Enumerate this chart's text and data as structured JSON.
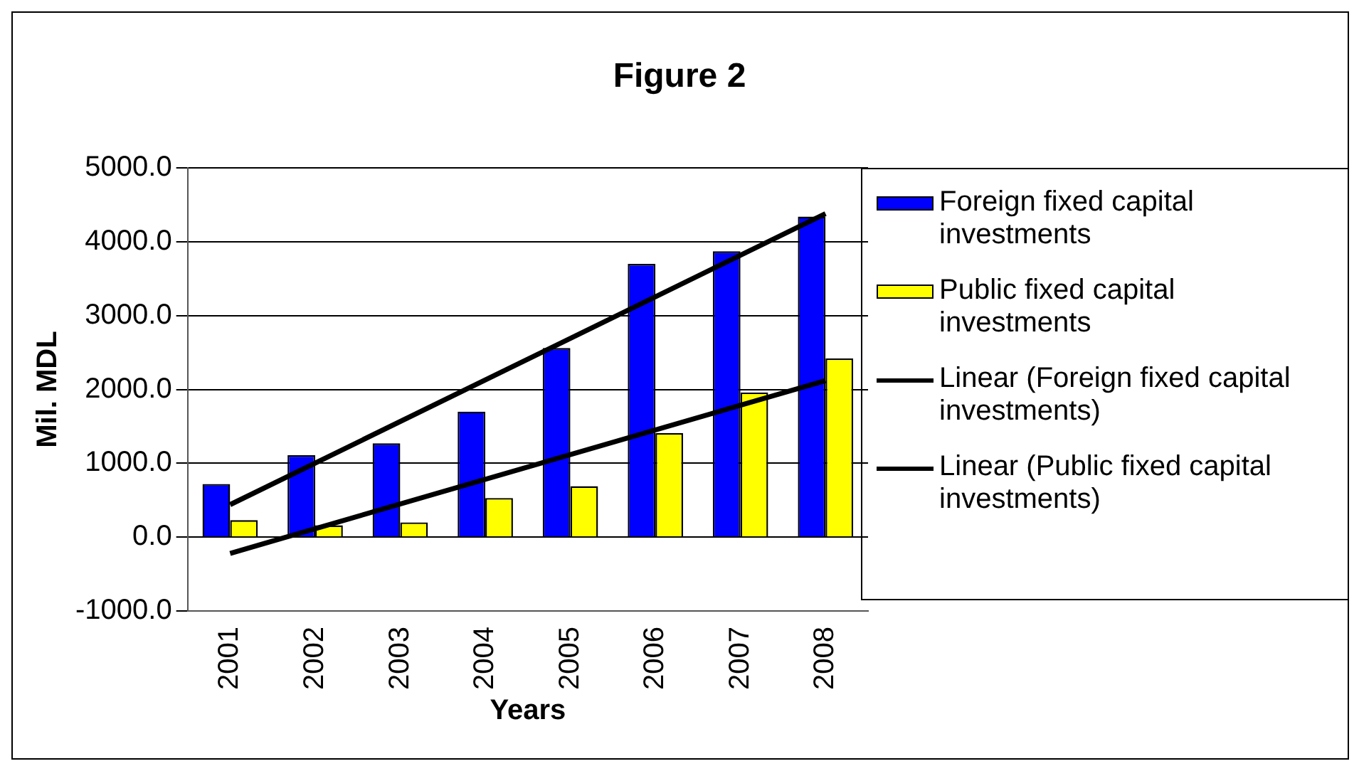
{
  "chart_data": {
    "type": "bar",
    "title": "Figure 2",
    "xlabel": "Years",
    "ylabel": "Mil. MDL",
    "categories": [
      "2001",
      "2002",
      "2003",
      "2004",
      "2005",
      "2006",
      "2007",
      "2008"
    ],
    "series": [
      {
        "name": "Foreign fixed capital investments",
        "color": "#0000ff",
        "values": [
          720,
          1110,
          1270,
          1700,
          2560,
          3700,
          3870,
          4340
        ]
      },
      {
        "name": "Public fixed capital investments",
        "color": "#ffff00",
        "values": [
          230,
          160,
          200,
          530,
          690,
          1410,
          1960,
          2420
        ]
      },
      {
        "name": "Linear (Foreign fixed capital investments)",
        "type": "line",
        "color": "#000000",
        "values": [
          440,
          null,
          null,
          null,
          null,
          null,
          null,
          4380
        ]
      },
      {
        "name": "Linear (Public fixed capital investments)",
        "type": "line",
        "color": "#000000",
        "values": [
          -220,
          null,
          null,
          null,
          null,
          null,
          null,
          2120
        ]
      }
    ],
    "ylim": [
      -1000,
      5000
    ],
    "yticks": [
      {
        "value": -1000,
        "label": "-1000.0"
      },
      {
        "value": 0,
        "label": "0.0"
      },
      {
        "value": 1000,
        "label": "1000.0"
      },
      {
        "value": 2000,
        "label": "2000.0"
      },
      {
        "value": 3000,
        "label": "3000.0"
      },
      {
        "value": 4000,
        "label": "4000.0"
      },
      {
        "value": 5000,
        "label": "5000.0"
      }
    ],
    "grid": "y",
    "legend": "right",
    "marker": "none"
  }
}
